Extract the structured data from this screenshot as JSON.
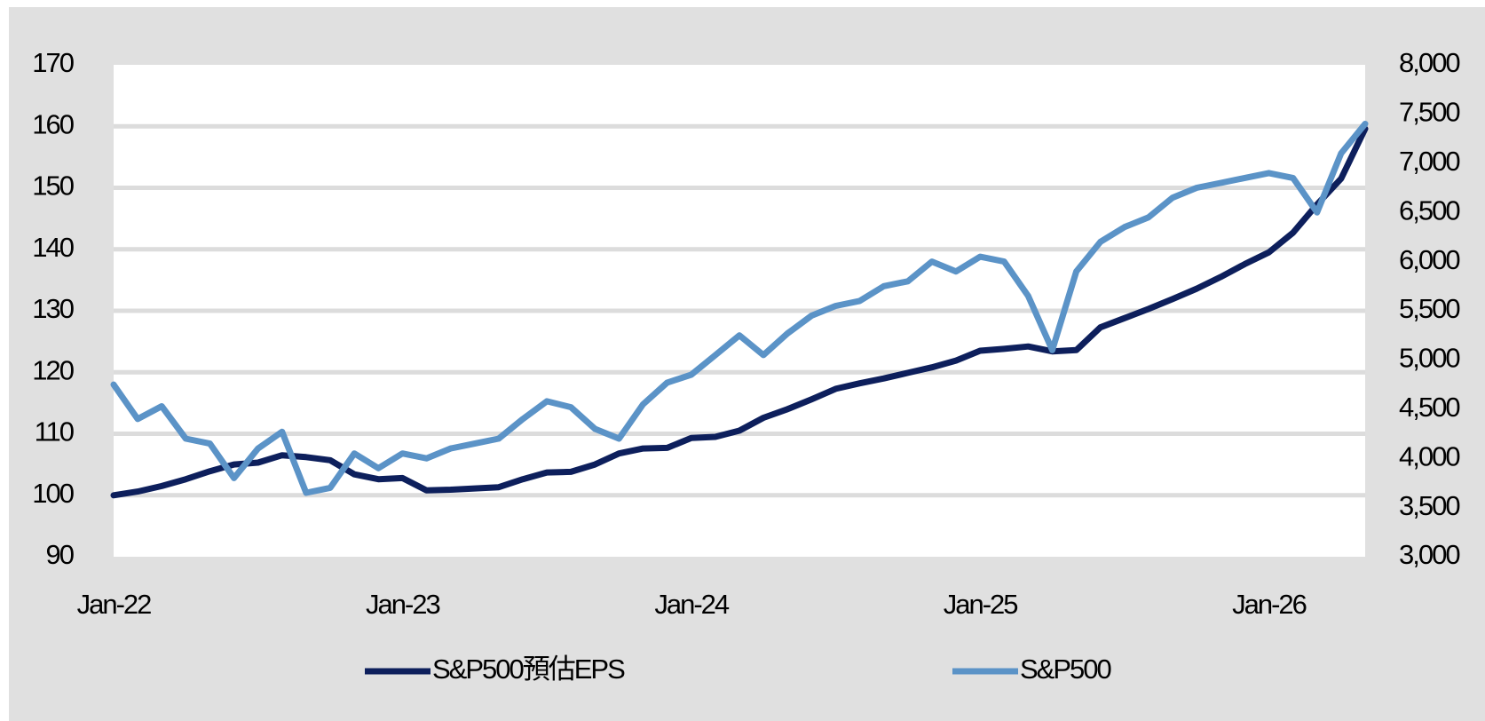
{
  "chart_data": {
    "type": "line",
    "x": [
      "2022-01",
      "2022-02",
      "2022-03",
      "2022-04",
      "2022-05",
      "2022-06",
      "2022-07",
      "2022-08",
      "2022-09",
      "2022-10",
      "2022-11",
      "2022-12",
      "2023-01",
      "2023-02",
      "2023-03",
      "2023-04",
      "2023-05",
      "2023-06",
      "2023-07",
      "2023-08",
      "2023-09",
      "2023-10",
      "2023-11",
      "2023-12",
      "2024-01",
      "2024-02",
      "2024-03",
      "2024-04",
      "2024-05",
      "2024-06",
      "2024-07",
      "2024-08",
      "2024-09",
      "2024-10",
      "2024-11",
      "2024-12",
      "2025-01",
      "2025-02",
      "2025-03",
      "2025-04",
      "2025-05",
      "2025-06",
      "2025-07",
      "2025-08",
      "2025-09",
      "2025-10",
      "2025-11",
      "2025-12",
      "2026-01",
      "2026-02",
      "2026-03",
      "2026-04",
      "2026-05"
    ],
    "series": [
      {
        "name": "S&P500預估EPS",
        "color": "#0d1f5c",
        "axis": "y",
        "values": [
          100,
          100.6,
          101.5,
          102.6,
          103.9,
          105,
          105.3,
          106.5,
          106.2,
          105.7,
          103.4,
          102.6,
          102.8,
          100.8,
          100.9,
          101.1,
          101.3,
          102.6,
          103.7,
          103.8,
          105,
          106.8,
          107.6,
          107.7,
          109.3,
          109.5,
          110.5,
          112.6,
          114,
          115.6,
          117.3,
          118.2,
          119,
          119.9,
          120.8,
          121.9,
          123.5,
          123.8,
          124.2,
          123.4,
          123.6,
          127.3,
          128.8,
          130.3,
          131.9,
          133.6,
          135.5,
          137.6,
          139.5,
          142.7,
          147.3,
          151.5,
          159.6
        ]
      },
      {
        "name": "S&P500",
        "color": "#5b93c7",
        "axis": "y2",
        "values": [
          4750,
          4400,
          4530,
          4200,
          4150,
          3800,
          4100,
          4270,
          3650,
          3700,
          4050,
          3900,
          4050,
          4000,
          4100,
          4150,
          4200,
          4400,
          4580,
          4520,
          4300,
          4200,
          4550,
          4770,
          4850,
          5050,
          5250,
          5050,
          5270,
          5450,
          5550,
          5600,
          5750,
          5800,
          6000,
          5900,
          6050,
          6000,
          5650,
          5100,
          5900,
          6200,
          6350,
          6450,
          6650,
          6750,
          6800,
          6850,
          6900,
          6850,
          6500,
          7100,
          7400
        ]
      }
    ],
    "xlim": [
      "2022-01",
      "2026-05"
    ],
    "xticks": [
      {
        "value": "2022-01",
        "label": "Jan-22"
      },
      {
        "value": "2023-01",
        "label": "Jan-23"
      },
      {
        "value": "2024-01",
        "label": "Jan-24"
      },
      {
        "value": "2025-01",
        "label": "Jan-25"
      },
      {
        "value": "2026-01",
        "label": "Jan-26"
      }
    ],
    "ylim": [
      90,
      170
    ],
    "yticks": [
      90,
      100,
      110,
      120,
      130,
      140,
      150,
      160,
      170
    ],
    "y2lim": [
      3000,
      8000
    ],
    "y2ticks": [
      {
        "value": 3000,
        "label": "3,000"
      },
      {
        "value": 3500,
        "label": "3,500"
      },
      {
        "value": 4000,
        "label": "4,000"
      },
      {
        "value": 4500,
        "label": "4,500"
      },
      {
        "value": 5000,
        "label": "5,000"
      },
      {
        "value": 5500,
        "label": "5,500"
      },
      {
        "value": 6000,
        "label": "6,000"
      },
      {
        "value": 6500,
        "label": "6,500"
      },
      {
        "value": 7000,
        "label": "7,000"
      },
      {
        "value": 7500,
        "label": "7,500"
      },
      {
        "value": 8000,
        "label": "8,000"
      }
    ],
    "grid": true,
    "legend": "bottom"
  }
}
